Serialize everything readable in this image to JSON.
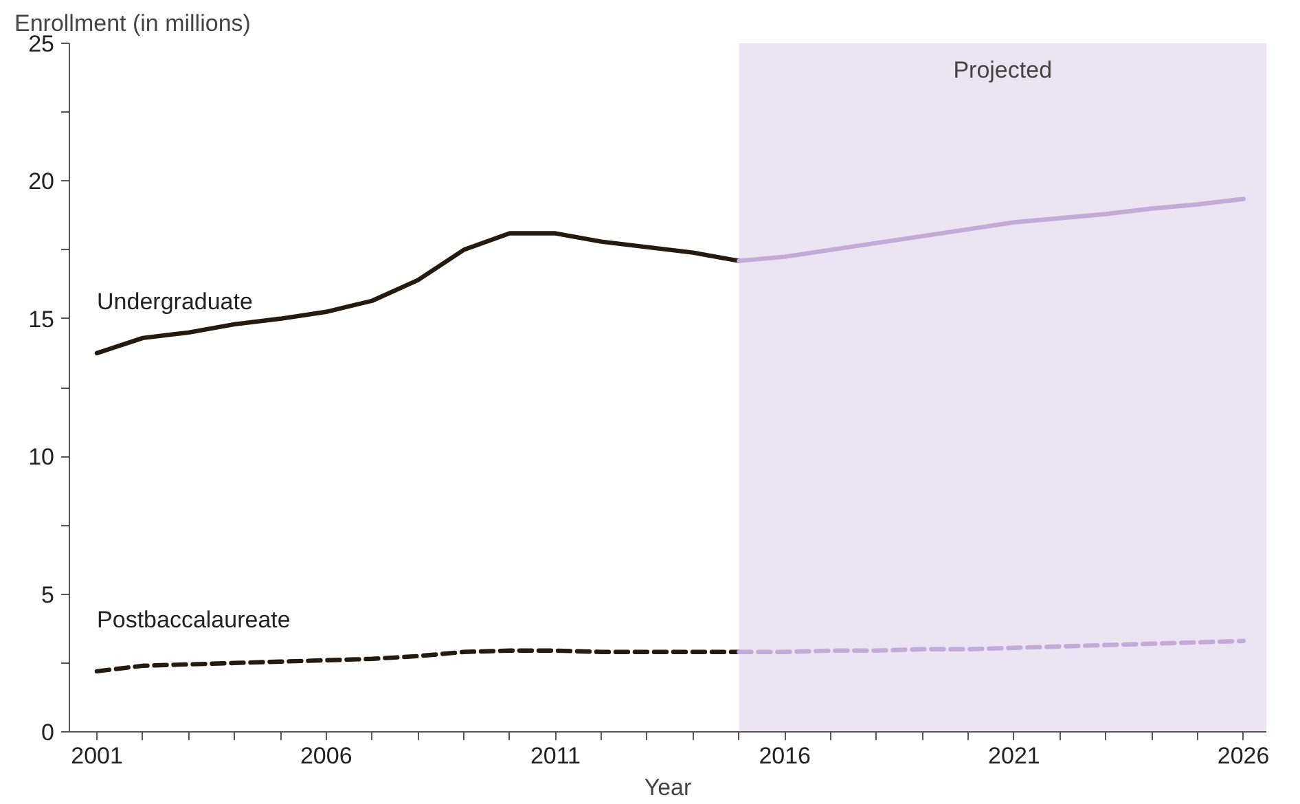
{
  "chart_data": {
    "type": "line",
    "ylabel": "Enrollment (in millions)",
    "xlabel": "Year",
    "xlim": [
      2000.4,
      2026.5
    ],
    "ylim": [
      0,
      25
    ],
    "xticks": [
      2001,
      {
        "value": 2002,
        "label": null
      },
      {
        "value": 2003,
        "label": null
      },
      {
        "value": 2004,
        "label": null
      },
      {
        "value": 2005,
        "label": null
      },
      2006,
      {
        "value": 2007,
        "label": null
      },
      {
        "value": 2008,
        "label": null
      },
      {
        "value": 2009,
        "label": null
      },
      {
        "value": 2010,
        "label": null
      },
      2011,
      {
        "value": 2012,
        "label": null
      },
      {
        "value": 2013,
        "label": null
      },
      {
        "value": 2014,
        "label": null
      },
      {
        "value": 2015,
        "label": null
      },
      2016,
      {
        "value": 2017,
        "label": null
      },
      {
        "value": 2018,
        "label": null
      },
      {
        "value": 2019,
        "label": null
      },
      {
        "value": 2020,
        "label": null
      },
      2021,
      {
        "value": 2022,
        "label": null
      },
      {
        "value": 2023,
        "label": null
      },
      {
        "value": 2024,
        "label": null
      },
      {
        "value": 2025,
        "label": null
      },
      2026
    ],
    "yticks": [
      0,
      {
        "value": 2.5,
        "label": null
      },
      5,
      {
        "value": 7.5,
        "label": null
      },
      10,
      {
        "value": 12.5,
        "label": null
      },
      15,
      {
        "value": 17.5,
        "label": null
      },
      20,
      {
        "value": 22.5,
        "label": null
      },
      25
    ],
    "grid": false,
    "bands": [
      {
        "axis": "x",
        "from": 2015,
        "to": 2026.5,
        "label": "Projected",
        "color": "#ede4f3"
      }
    ],
    "series": [
      {
        "name": "Undergraduate",
        "color": "#231a10",
        "line_style": "solid",
        "x": [
          2001,
          2002,
          2003,
          2004,
          2005,
          2006,
          2007,
          2008,
          2009,
          2010,
          2011,
          2012,
          2013,
          2014,
          2015
        ],
        "values": [
          13.75,
          14.3,
          14.5,
          14.8,
          15.0,
          15.25,
          15.65,
          16.4,
          17.5,
          18.1,
          18.1,
          17.8,
          17.6,
          17.4,
          17.1
        ]
      },
      {
        "color": "#c3aad8",
        "line_style": "solid",
        "x": [
          2015,
          2016,
          2017,
          2018,
          2019,
          2020,
          2021,
          2022,
          2023,
          2024,
          2025,
          2026
        ],
        "values": [
          17.1,
          17.25,
          17.5,
          17.75,
          18.0,
          18.25,
          18.5,
          18.65,
          18.8,
          19.0,
          19.15,
          19.35
        ]
      },
      {
        "name": "Postbaccalaureate",
        "color": "#231a10",
        "line_style": "dashed",
        "x": [
          2001,
          2002,
          2003,
          2004,
          2005,
          2006,
          2007,
          2008,
          2009,
          2010,
          2011,
          2012,
          2013,
          2014,
          2015
        ],
        "values": [
          2.2,
          2.4,
          2.45,
          2.5,
          2.55,
          2.6,
          2.65,
          2.75,
          2.9,
          2.95,
          2.95,
          2.9,
          2.9,
          2.9,
          2.9
        ]
      },
      {
        "color": "#c3aad8",
        "line_style": "dashed",
        "x": [
          2015,
          2016,
          2017,
          2018,
          2019,
          2020,
          2021,
          2022,
          2023,
          2024,
          2025,
          2026
        ],
        "values": [
          2.9,
          2.9,
          2.95,
          2.95,
          3.0,
          3.0,
          3.05,
          3.1,
          3.15,
          3.2,
          3.25,
          3.3
        ]
      }
    ]
  }
}
